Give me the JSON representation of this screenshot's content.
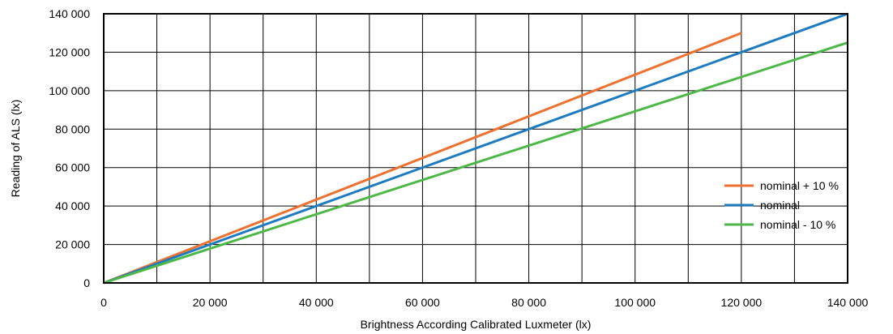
{
  "chart_data": {
    "type": "line",
    "title": "",
    "xlabel": "Brightness According Calibrated Luxmeter (lx)",
    "ylabel": "Reading of ALS (lx)",
    "xlim": [
      0,
      140000
    ],
    "ylim": [
      0,
      140000
    ],
    "x_ticks": [
      0,
      20000,
      40000,
      60000,
      80000,
      100000,
      120000,
      140000
    ],
    "x_tick_labels": [
      "0",
      "20 000",
      "40 000",
      "60 000",
      "80 000",
      "100 000",
      "120 000",
      "140 000"
    ],
    "y_ticks": [
      0,
      20000,
      40000,
      60000,
      80000,
      100000,
      120000,
      140000
    ],
    "y_tick_labels": [
      "0",
      "20 000",
      "40 000",
      "60 000",
      "80 000",
      "100 000",
      "120 000",
      "140 000"
    ],
    "grid": true,
    "grid_x_step": 10000,
    "grid_y_step": 20000,
    "legend_position": "right",
    "series": [
      {
        "name": "nominal + 10 %",
        "color": "#ED7131",
        "x": [
          0,
          120000
        ],
        "y": [
          0,
          130000
        ]
      },
      {
        "name": "nominal",
        "color": "#1F7BBF",
        "x": [
          0,
          140000
        ],
        "y": [
          0,
          140000
        ]
      },
      {
        "name": "nominal - 10 %",
        "color": "#4DB848",
        "x": [
          0,
          140000
        ],
        "y": [
          0,
          125000
        ]
      }
    ]
  }
}
